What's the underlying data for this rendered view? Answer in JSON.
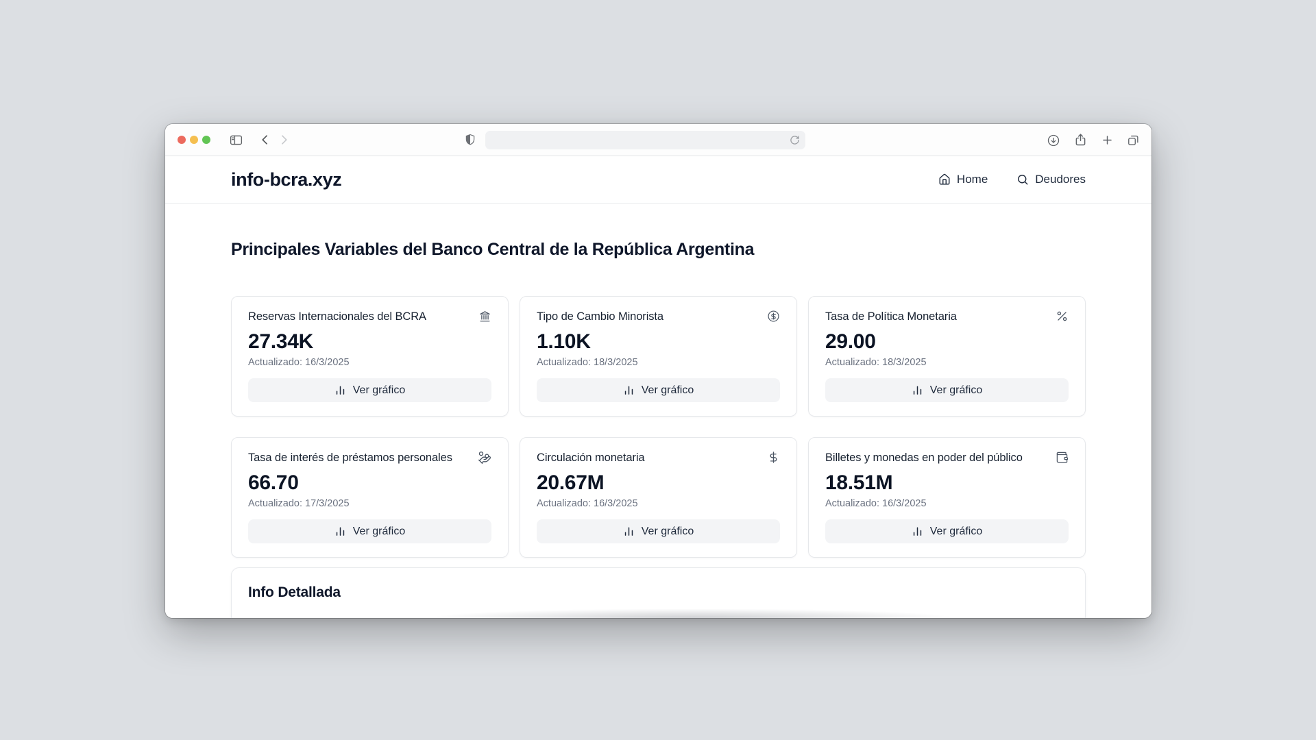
{
  "colors": {
    "traffic_red": "#ec6a5e",
    "traffic_yellow": "#f5bf50",
    "traffic_green": "#62c554"
  },
  "site": {
    "brand": "info-bcra.xyz",
    "nav": [
      {
        "label": "Home",
        "icon": "home-icon"
      },
      {
        "label": "Deudores",
        "icon": "search-icon"
      }
    ]
  },
  "main": {
    "heading": "Principales Variables del Banco Central de la República Argentina",
    "cards": [
      {
        "title": "Reservas Internacionales del BCRA",
        "icon": "landmark-icon",
        "value": "27.34K",
        "updated": "Actualizado: 16/3/2025",
        "button": "Ver gráfico"
      },
      {
        "title": "Tipo de Cambio Minorista",
        "icon": "circle-dollar-icon",
        "value": "1.10K",
        "updated": "Actualizado: 18/3/2025",
        "button": "Ver gráfico"
      },
      {
        "title": "Tasa de Política Monetaria",
        "icon": "percent-icon",
        "value": "29.00",
        "updated": "Actualizado: 18/3/2025",
        "button": "Ver gráfico"
      },
      {
        "title": "Tasa de interés de préstamos personales",
        "icon": "hand-coins-icon",
        "value": "66.70",
        "updated": "Actualizado: 17/3/2025",
        "button": "Ver gráfico"
      },
      {
        "title": "Circulación monetaria",
        "icon": "dollar-icon",
        "value": "20.67M",
        "updated": "Actualizado: 16/3/2025",
        "button": "Ver gráfico"
      },
      {
        "title": "Billetes y monedas en poder del público",
        "icon": "wallet-icon",
        "value": "18.51M",
        "updated": "Actualizado: 16/3/2025",
        "button": "Ver gráfico"
      }
    ],
    "detail_section": {
      "title": "Info Detallada"
    }
  }
}
